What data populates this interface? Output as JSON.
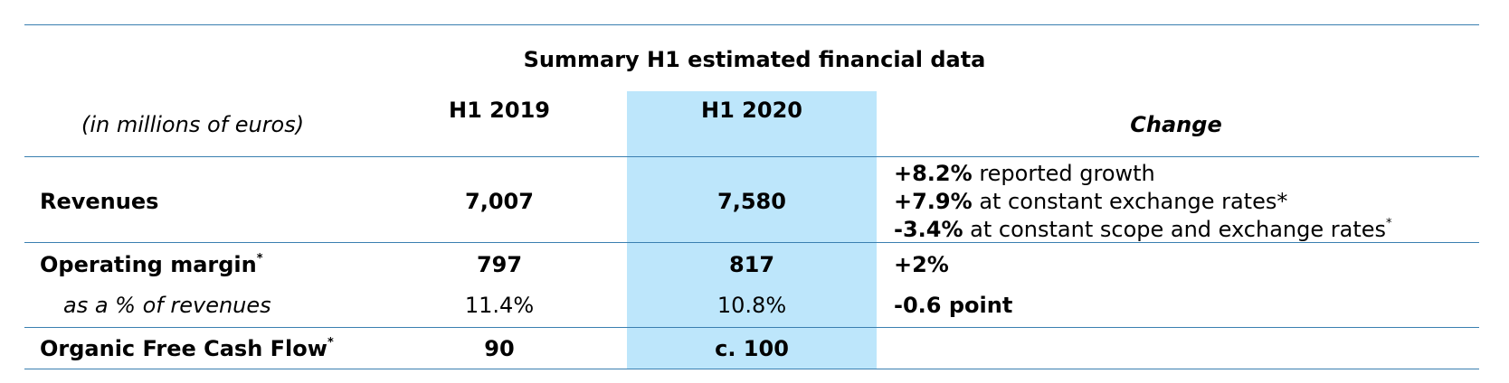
{
  "title": "Summary H1 estimated financial data",
  "header": {
    "unit": "(in millions of euros)",
    "columns": [
      "H1 2019",
      "H1 2020",
      "Change"
    ]
  },
  "rows": [
    {
      "label": "Revenues",
      "h1_2019": "7,007",
      "h1_2020": "7,580",
      "change": [
        {
          "bold": "+8.2%",
          "text": "reported growth"
        },
        {
          "bold": "+7.9%",
          "text": "at constant exchange rates*"
        },
        {
          "bold": "-3.4%",
          "text": "at constant scope and exchange rates",
          "sup": "*"
        }
      ]
    },
    {
      "label": "Operating margin",
      "label_sup": "*",
      "h1_2019": "797",
      "h1_2020": "817",
      "change": [
        {
          "bold": "+2%"
        }
      ]
    },
    {
      "label": "as a % of revenues",
      "h1_2019": "11.4%",
      "h1_2020": "10.8%",
      "change": [
        {
          "bold": "-0.6 point"
        }
      ]
    },
    {
      "label": "Organic Free Cash Flow",
      "label_sup": "*",
      "h1_2019": "90",
      "h1_2020": "c. 100"
    }
  ]
}
